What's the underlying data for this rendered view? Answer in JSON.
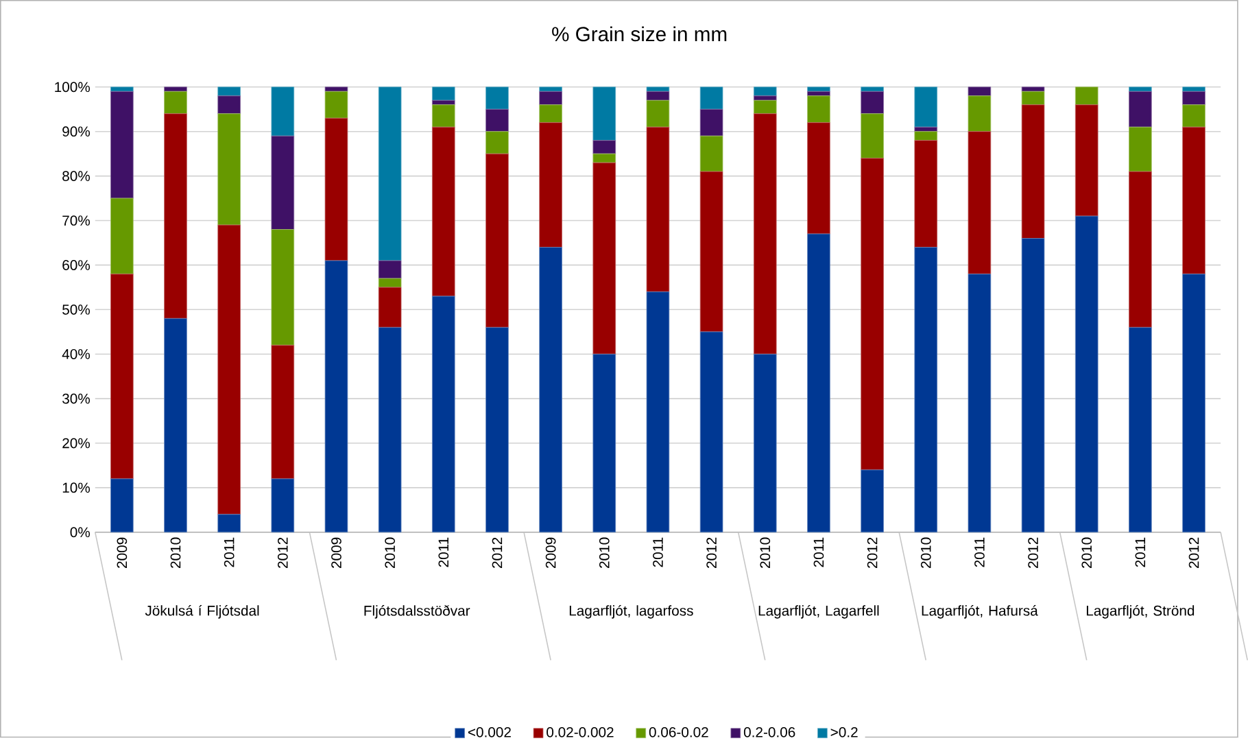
{
  "chart_data": {
    "type": "bar",
    "title": "% Grain size in mm",
    "stacked": true,
    "grid": "y",
    "legend": "bottom",
    "categories": [
      "2009",
      "2010",
      "2011",
      "2012",
      "2009",
      "2010",
      "2011",
      "2012",
      "2009",
      "2010",
      "2011",
      "2012",
      "2010",
      "2011",
      "2012",
      "2010",
      "2011",
      "2012",
      "2010",
      "2011",
      "2012"
    ],
    "annotations": [
      "Jökulsá í Fljótsdal",
      "Fljótsdalsstöðvar",
      "Lagarfljót, lagarfoss",
      "Lagarfljót, Lagarfell",
      "Lagarfljót, Hafursá",
      "Lagarfljót, Strönd"
    ],
    "ylim": [
      0,
      100
    ],
    "yticks": [
      {
        "value": 0,
        "label": "0%"
      },
      {
        "value": 10,
        "label": "10%"
      },
      {
        "value": 20,
        "label": "20%"
      },
      {
        "value": 30,
        "label": "30%"
      },
      {
        "value": 40,
        "label": "40%"
      },
      {
        "value": 50,
        "label": "50%"
      },
      {
        "value": 60,
        "label": "60%"
      },
      {
        "value": 70,
        "label": "70%"
      },
      {
        "value": 80,
        "label": "80%"
      },
      {
        "value": 90,
        "label": "90%"
      },
      {
        "value": 100,
        "label": "100%"
      }
    ],
    "series": [
      {
        "name": "<0.002",
        "color": "#003893",
        "values": [
          12,
          48,
          4,
          12,
          61,
          46,
          53,
          46,
          64,
          40,
          54,
          45,
          40,
          67,
          14,
          64,
          58,
          66,
          71,
          46,
          58
        ]
      },
      {
        "name": "0.02-0.002",
        "color": "#990000",
        "values": [
          46,
          46,
          65,
          30,
          32,
          9,
          38,
          39,
          28,
          43,
          37,
          36,
          54,
          25,
          70,
          24,
          32,
          30,
          25,
          35,
          33
        ]
      },
      {
        "name": "0.06-0.02",
        "color": "#669900",
        "values": [
          17,
          5,
          25,
          26,
          6,
          2,
          5,
          5,
          4,
          2,
          6,
          8,
          3,
          6,
          10,
          2,
          8,
          3,
          4,
          10,
          5
        ]
      },
      {
        "name": "0.2-0.06",
        "color": "#3f1166",
        "values": [
          24,
          1,
          4,
          21,
          1,
          4,
          1,
          5,
          3,
          3,
          2,
          6,
          1,
          1,
          5,
          1,
          2,
          1,
          0,
          8,
          3
        ]
      },
      {
        "name": ">0.2",
        "color": "#007aa3",
        "values": [
          1,
          0,
          2,
          11,
          0,
          39,
          3,
          5,
          1,
          12,
          1,
          5,
          2,
          1,
          1,
          9,
          0,
          0,
          0,
          1,
          1
        ]
      }
    ]
  }
}
